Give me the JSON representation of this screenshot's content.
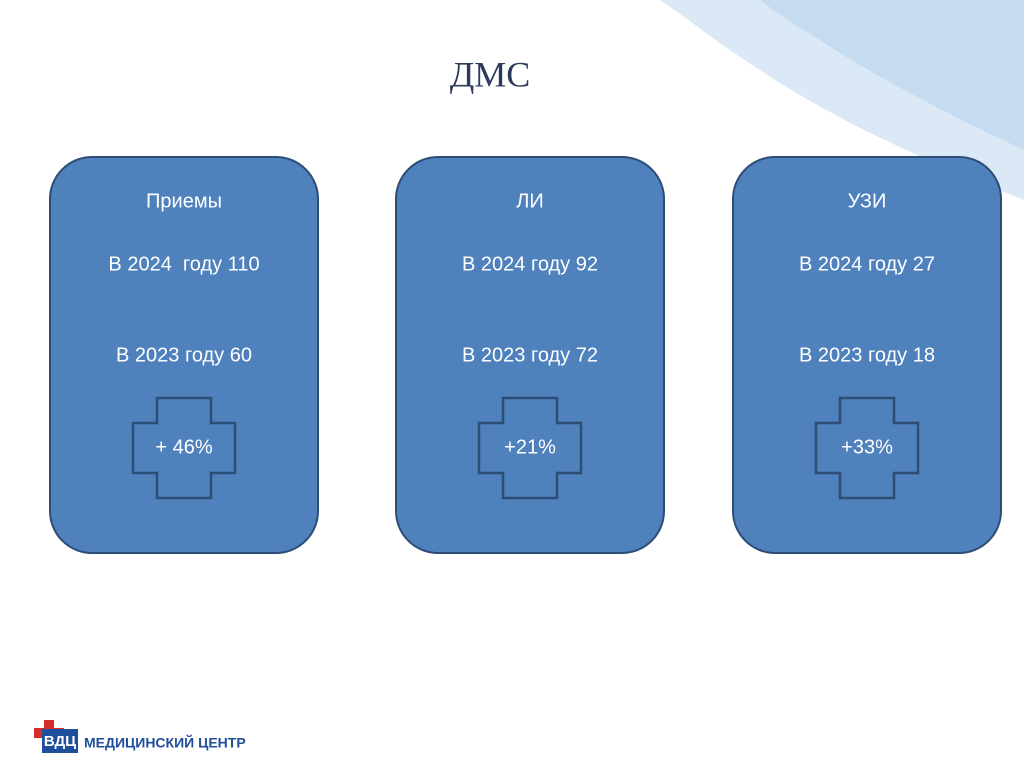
{
  "header": {
    "title": "ДМС"
  },
  "cards": [
    {
      "title": "Приемы",
      "line_2024": "В 2024  году 110",
      "line_2023": "В 2023 году 60",
      "change": "+ 46%"
    },
    {
      "title": "ЛИ",
      "line_2024": "В 2024 году 92",
      "line_2023": "В 2023 году 72",
      "change": "+21%"
    },
    {
      "title": "УЗИ",
      "line_2024": "В 2024 году 27",
      "line_2023": "В 2023 году 18",
      "change": "+33%"
    }
  ],
  "footer": {
    "logo_mark": "ВДЦ",
    "logo_text": "МЕДИЦИНСКИЙ ЦЕНТР"
  }
}
